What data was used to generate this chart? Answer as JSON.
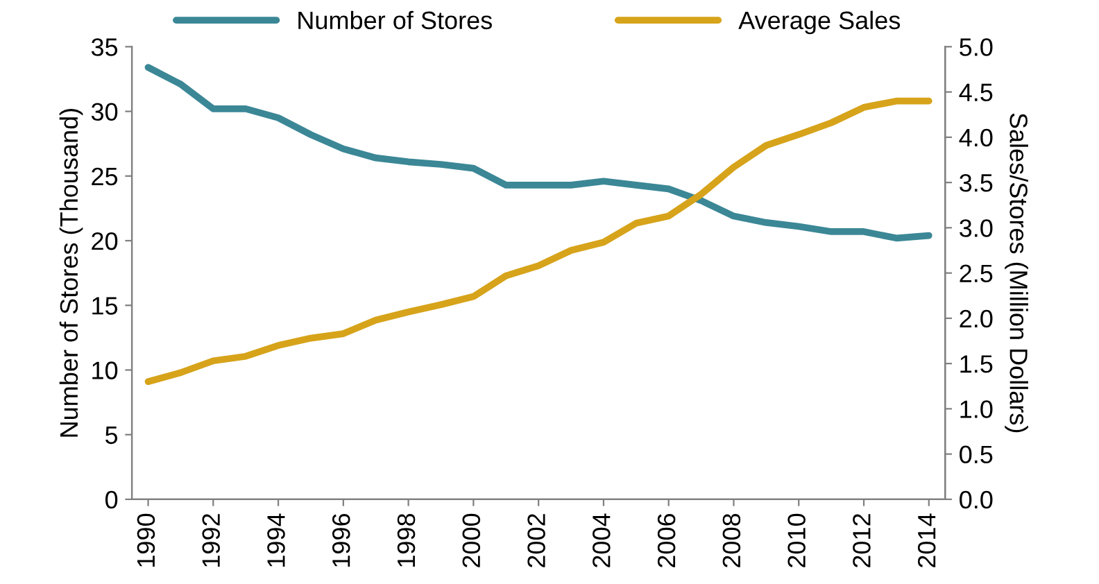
{
  "chart_data": {
    "type": "line",
    "xlabel": null,
    "ylabel": "Number of Stores (Thousand)",
    "y2label": "Sales/Stores (Million Dollars)",
    "x": [
      1990,
      1991,
      1992,
      1993,
      1994,
      1995,
      1996,
      1997,
      1998,
      1999,
      2000,
      2001,
      2002,
      2003,
      2004,
      2005,
      2006,
      2007,
      2008,
      2009,
      2010,
      2011,
      2012,
      2013,
      2014
    ],
    "series": [
      {
        "name": "Number of Stores",
        "color": "#3b8796",
        "values": [
          33.4,
          32.1,
          30.2,
          30.2,
          29.5,
          28.2,
          27.1,
          26.4,
          26.1,
          25.9,
          25.6,
          24.3,
          24.3,
          24.3,
          24.6,
          24.3,
          24.0,
          23.1,
          21.9,
          21.4,
          21.1,
          20.7,
          20.7,
          20.2,
          20.4
        ]
      },
      {
        "name": "Average Sales",
        "color": "#d6a31a",
        "axis": "y2",
        "values": [
          1.3,
          1.4,
          1.53,
          1.58,
          1.7,
          1.78,
          1.83,
          1.98,
          2.07,
          2.15,
          2.24,
          2.47,
          2.58,
          2.75,
          2.84,
          3.05,
          3.13,
          3.37,
          3.67,
          3.91,
          4.03,
          4.16,
          4.33,
          4.4,
          4.4
        ]
      }
    ],
    "xlim": [
      1989.5,
      2014.5
    ],
    "xticks": [
      1990,
      1992,
      1994,
      1996,
      1998,
      2000,
      2002,
      2004,
      2006,
      2008,
      2010,
      2012,
      2014
    ],
    "ylim": [
      0,
      35
    ],
    "yticks": [
      0,
      5,
      10,
      15,
      20,
      25,
      30,
      35
    ],
    "y2lim": [
      0,
      5
    ],
    "y2ticks": [
      {
        "value": 0,
        "label": "0.0"
      },
      {
        "value": 0.5,
        "label": "0.5"
      },
      {
        "value": 1,
        "label": "1.0"
      },
      {
        "value": 1.5,
        "label": "1.5"
      },
      {
        "value": 2,
        "label": "2.0"
      },
      {
        "value": 2.5,
        "label": "2.5"
      },
      {
        "value": 3,
        "label": "3.0"
      },
      {
        "value": 3.5,
        "label": "3.5"
      },
      {
        "value": 4,
        "label": "4.0"
      },
      {
        "value": 4.5,
        "label": "4.5"
      },
      {
        "value": 5,
        "label": "5.0"
      }
    ],
    "legend": "top",
    "grid": false,
    "marker": "none",
    "line_style": "solid"
  }
}
